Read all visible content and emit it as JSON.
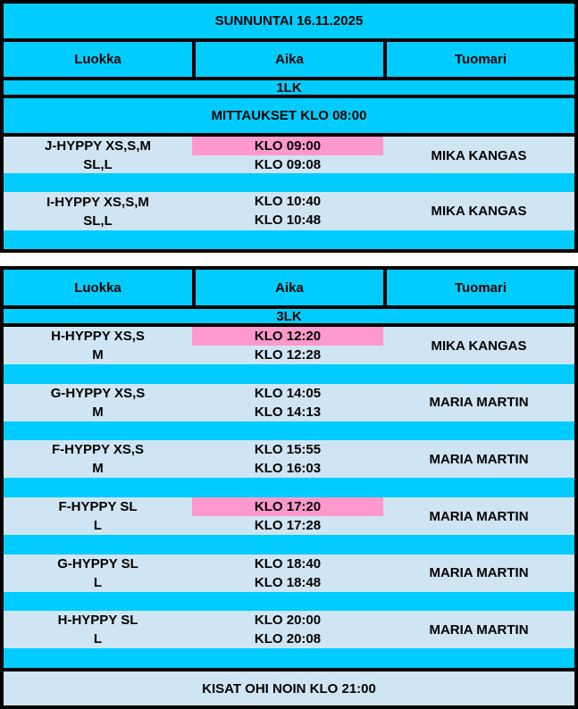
{
  "title": "SUNNUNTAI 16.11.2025",
  "headers": [
    "Luokka",
    "Aika",
    "Tuomari"
  ],
  "table1": {
    "level": "1LK",
    "note": "MITTAUKSET KLO 08:00",
    "rows": [
      {
        "class1": "J-HYPPY XS,S,M",
        "class2": "SL,L",
        "time1": "KLO 09:00",
        "time2": "KLO 09:08",
        "judge": "MIKA KANGAS",
        "highlight": true
      },
      {
        "class1": "I-HYPPY XS,S,M",
        "class2": "SL,L",
        "time1": "KLO 10:40",
        "time2": "KLO 10:48",
        "judge": "MIKA KANGAS",
        "highlight": false
      }
    ]
  },
  "table2": {
    "level": "3LK",
    "rows": [
      {
        "class1": "H-HYPPY XS,S",
        "class2": "M",
        "time1": "KLO 12:20",
        "time2": "KLO 12:28",
        "judge": "MIKA KANGAS",
        "highlight": true
      },
      {
        "class1": "G-HYPPY XS,S",
        "class2": "M",
        "time1": "KLO 14:05",
        "time2": "KLO 14:13",
        "judge": "MARIA MARTIN",
        "highlight": false
      },
      {
        "class1": "F-HYPPY XS,S",
        "class2": "M",
        "time1": "KLO 15:55",
        "time2": "KLO 16:03",
        "judge": "MARIA MARTIN",
        "highlight": false
      },
      {
        "class1": "F-HYPPY SL",
        "class2": "L",
        "time1": "KLO 17:20",
        "time2": "KLO 17:28",
        "judge": "MARIA MARTIN",
        "highlight": true
      },
      {
        "class1": "G-HYPPY SL",
        "class2": "L",
        "time1": "KLO 18:40",
        "time2": "KLO 18:48",
        "judge": "MARIA MARTIN",
        "highlight": false
      },
      {
        "class1": "H-HYPPY SL",
        "class2": "L",
        "time1": "KLO 20:00",
        "time2": "KLO 20:08",
        "judge": "MARIA MARTIN",
        "highlight": false
      }
    ],
    "footer": "KISAT OHI NOIN KLO 21:00"
  },
  "colors": {
    "header": "#00ccff",
    "row": "#cfe5f3",
    "highlight": "#ff99cc",
    "border": "#000000"
  }
}
